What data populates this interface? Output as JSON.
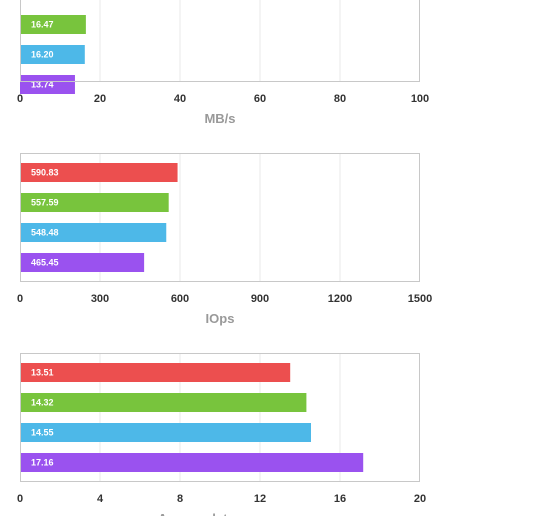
{
  "colors": [
    "#ec4f4f",
    "#78c43d",
    "#4db8e8",
    "#9a52ef"
  ],
  "chart_data": [
    {
      "type": "bar",
      "orientation": "horizontal",
      "categories": [
        "",
        "",
        "",
        ""
      ],
      "values": [
        null,
        16.47,
        16.2,
        13.74
      ],
      "value_labels": [
        "",
        "16.47",
        "16.20",
        "13.74"
      ],
      "xlim": [
        0,
        100
      ],
      "xticks": [
        0,
        20,
        40,
        60,
        80,
        100
      ],
      "xlabel": "MB/s",
      "grid": true
    },
    {
      "type": "bar",
      "orientation": "horizontal",
      "categories": [
        "",
        "",
        "",
        ""
      ],
      "values": [
        590.83,
        557.59,
        548.48,
        465.45
      ],
      "value_labels": [
        "590.83",
        "557.59",
        "548.48",
        "465.45"
      ],
      "xlim": [
        0,
        1500
      ],
      "xticks": [
        0,
        300,
        600,
        900,
        1200,
        1500
      ],
      "xlabel": "IOps",
      "grid": true
    },
    {
      "type": "bar",
      "orientation": "horizontal",
      "categories": [
        "",
        "",
        "",
        ""
      ],
      "values": [
        13.51,
        14.32,
        14.55,
        17.16
      ],
      "value_labels": [
        "13.51",
        "14.32",
        "14.55",
        "17.16"
      ],
      "xlim": [
        0,
        20
      ],
      "xticks": [
        0,
        4,
        8,
        12,
        16,
        20
      ],
      "xlabel": "Average latency, ms",
      "grid": true
    }
  ]
}
